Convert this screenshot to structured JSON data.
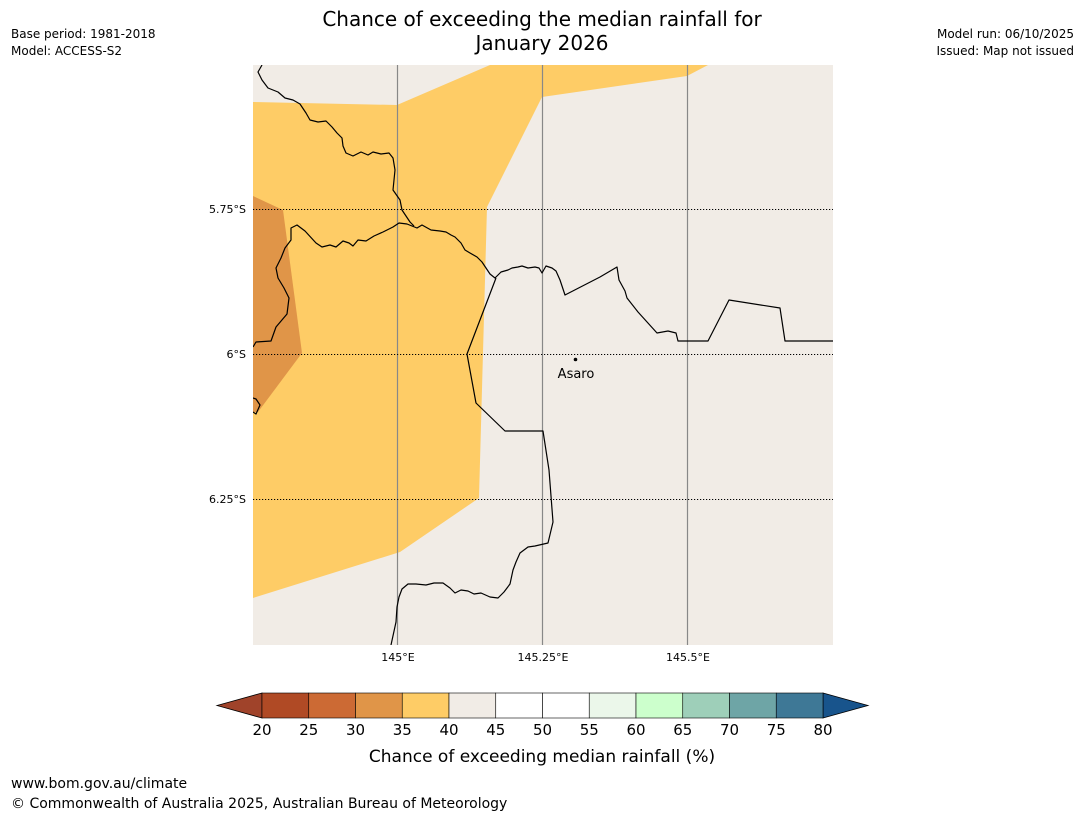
{
  "title_line1": "Chance of exceeding the median rainfall for",
  "title_line2": "January 2026",
  "meta_left": {
    "base_period": "Base period: 1981-2018",
    "model": "Model: ACCESS-S2"
  },
  "meta_right": {
    "model_run": "Model run: 06/10/2025",
    "issued": "Issued: Map not issued"
  },
  "map": {
    "lat_labels": [
      "5.75°S",
      "6°S",
      "6.25°S"
    ],
    "lon_labels": [
      "145°E",
      "145.25°E",
      "145.5°E"
    ],
    "place_name": "Asaro"
  },
  "colorbar": {
    "label": "Chance of exceeding median rainfall (%)",
    "ticks": [
      "20",
      "25",
      "30",
      "35",
      "40",
      "45",
      "50",
      "55",
      "60",
      "65",
      "70",
      "75",
      "80"
    ],
    "below_color": "#a0432a",
    "above_color": "#18548c",
    "colors": [
      "#b04a25",
      "#cc6a34",
      "#e09548",
      "#fecc66",
      "#f1ece6",
      "#ffffff",
      "#ffffff",
      "#ebf7ea",
      "#ccffcc",
      "#9ecfb9",
      "#6ea5a6",
      "#3e7896"
    ]
  },
  "region_colors": {
    "background": "#f1ece6",
    "band_35_40": "#fecc66",
    "band_30_35": "#e09548"
  },
  "footer": {
    "url": "www.bom.gov.au/climate",
    "copyright": "© Commonwealth of Australia 2025, Australian Bureau of Meteorology"
  }
}
